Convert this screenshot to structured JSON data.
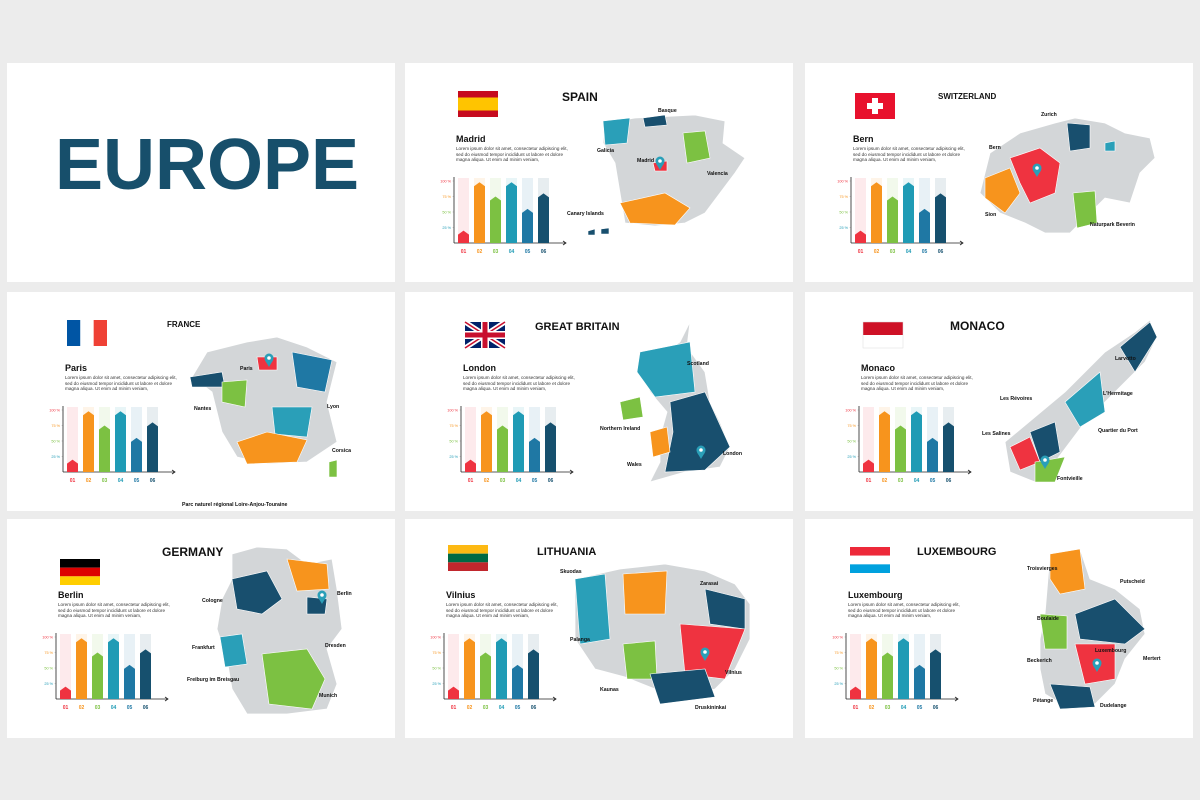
{
  "title": "EUROPE",
  "lorem": "Lorem ipsum dolor sit amet, consectetur adipiscing elit, sed do eiusmod tempor incididunt ut labore et dolore magna aliqua. Ut enim ad minim veniam,",
  "chart": {
    "categories": [
      "01",
      "02",
      "03",
      "04",
      "05",
      "06"
    ],
    "values": [
      20,
      98,
      75,
      98,
      55,
      80
    ],
    "colors": [
      "#ef3340",
      "#f7941d",
      "#7cc142",
      "#1f9bb5",
      "#1f78a4",
      "#16506e"
    ],
    "ylim": [
      0,
      100
    ],
    "yticks": [
      {
        "value": 25,
        "label": "25 %"
      },
      {
        "value": 50,
        "label": "50 %"
      },
      {
        "value": 75,
        "label": "75 %"
      },
      {
        "value": 100,
        "label": "100 %"
      }
    ]
  },
  "slides": [
    {
      "country": "SPAIN",
      "capital": "Madrid",
      "places": [
        "Basque",
        "Galicia",
        "Madrid",
        "Valencia",
        "Canary Islands"
      ]
    },
    {
      "country": "SWITZERLAND",
      "capital": "Bern",
      "places": [
        "Zurich",
        "Bern",
        "Sion",
        "Naturpark Beverin"
      ]
    },
    {
      "country": "FRANCE",
      "capital": "Paris",
      "places": [
        "Paris",
        "Nantes",
        "Lyon",
        "Corsica",
        "Parc naturel régional Loire-Anjou-Touraine"
      ]
    },
    {
      "country": "GREAT BRITAIN",
      "capital": "London",
      "places": [
        "Scotland",
        "Northern Ireland",
        "Wales",
        "London"
      ]
    },
    {
      "country": "MONACO",
      "capital": "Monaco",
      "places": [
        "Larvotto",
        "Les Révoires",
        "L'Hermitage",
        "Les Salines",
        "Quartier du Port",
        "Fontvieille"
      ]
    },
    {
      "country": "GERMANY",
      "capital": "Berlin",
      "places": [
        "Cologne",
        "Berlin",
        "Frankfurt",
        "Dresden",
        "Freiburg im Breisgau",
        "Munich"
      ]
    },
    {
      "country": "LITHUANIA",
      "capital": "Vilnius",
      "places": [
        "Skuodas",
        "Zarasai",
        "Palanga",
        "Vilnius",
        "Kaunas",
        "Druskininkai"
      ]
    },
    {
      "country": "LUXEMBOURG",
      "capital": "Luxembourg",
      "places": [
        "Troisvierges",
        "Putscheid",
        "Boulaide",
        "Mertert",
        "Luxembourg",
        "Beckerich",
        "Pétange",
        "Dudelange"
      ]
    }
  ]
}
